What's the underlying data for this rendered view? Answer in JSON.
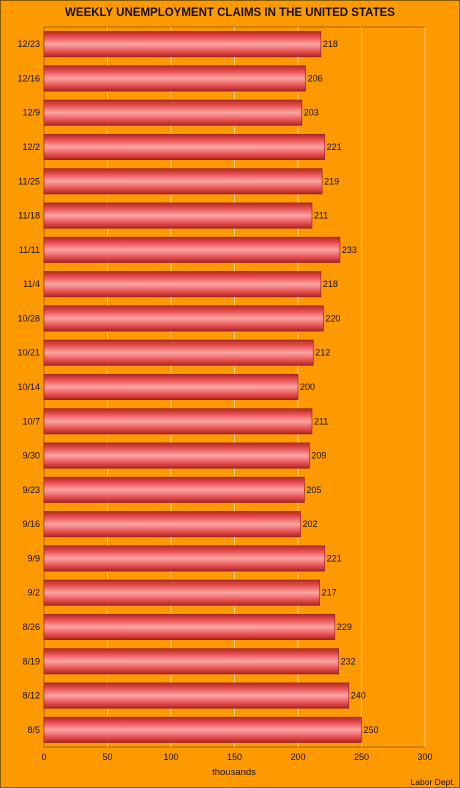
{
  "chart_data": {
    "type": "bar",
    "orientation": "horizontal",
    "title": "WEEKLY UNEMPLOYMENT CLAIMS IN THE UNITED STATES",
    "xlabel": "thousands",
    "source": "Labor Dept.",
    "categories": [
      "12/23",
      "12/16",
      "12/9",
      "12/2",
      "11/25",
      "11/18",
      "11/11",
      "11/4",
      "10/28",
      "10/21",
      "10/14",
      "10/7",
      "9/30",
      "9/23",
      "9/16",
      "9/9",
      "9/2",
      "8/26",
      "8/19",
      "8/12",
      "8/5"
    ],
    "values": [
      218,
      206,
      203,
      221,
      219,
      211,
      233,
      218,
      220,
      212,
      200,
      211,
      209,
      205,
      202,
      221,
      217,
      229,
      232,
      240,
      250
    ],
    "xlim": [
      0,
      300
    ],
    "xticks": [
      0,
      50,
      100,
      150,
      200,
      250,
      300
    ],
    "grid": true,
    "colors": {
      "background": "#FF9900",
      "bar_light": "#FF9F9F",
      "bar_mid": "#F25A5A",
      "bar_dark": "#B22A2A",
      "gridline": "#FFE2A8"
    }
  }
}
